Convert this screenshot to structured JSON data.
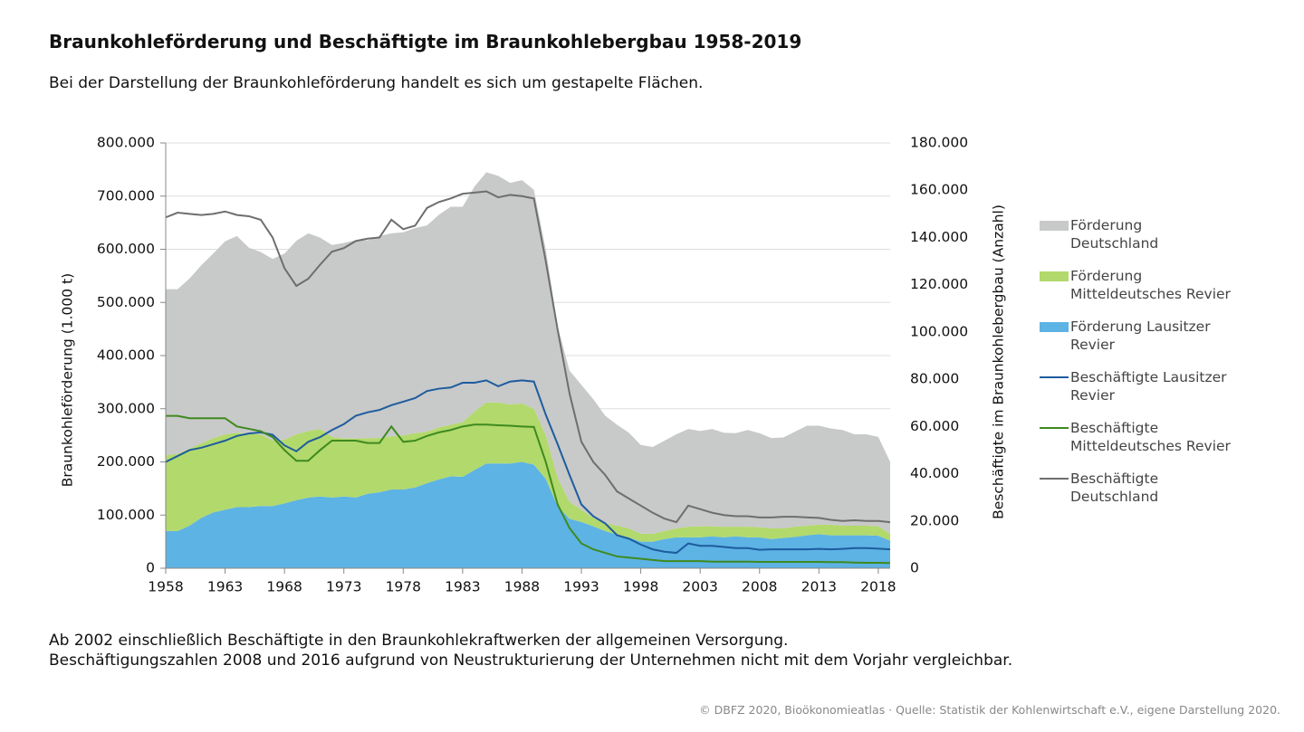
{
  "chart_data": {
    "type": "area",
    "title": "Braunkohleförderung und Beschäftigte im Braunkohlebergbau 1958-2019",
    "subtitle": "Bei der Darstellung der Braunkohleförderung handelt es sich um gestapelte Flächen.",
    "y_label": "Braunkohleförderung (1.000 t)",
    "y2_label": "Beschäftigte im Braunkohlebergbau (Anzahl)",
    "notes": [
      "Ab 2002 einschließlich Beschäftigte in den Braunkohlekraftwerken der allgemeinen Versorgung.",
      "Beschäftigungszahlen 2008 und 2016 aufgrund von Neustrukturierung der Unternehmen nicht mit dem Vorjahr vergleichbar."
    ],
    "source": "© DBFZ 2020, Bioökonomieatlas · Quelle: Statistik der Kohlenwirtschaft e.V., eigene Darstellung 2020.",
    "x": [
      1958,
      1959,
      1960,
      1961,
      1962,
      1963,
      1964,
      1965,
      1966,
      1967,
      1968,
      1969,
      1970,
      1971,
      1972,
      1973,
      1974,
      1975,
      1976,
      1977,
      1978,
      1979,
      1980,
      1981,
      1982,
      1983,
      1984,
      1985,
      1986,
      1987,
      1988,
      1989,
      1990,
      1991,
      1992,
      1993,
      1994,
      1995,
      1996,
      1997,
      1998,
      1999,
      2000,
      2001,
      2002,
      2003,
      2004,
      2005,
      2006,
      2007,
      2008,
      2009,
      2010,
      2011,
      2012,
      2013,
      2014,
      2015,
      2016,
      2017,
      2018,
      2019
    ],
    "xlim": [
      1958,
      2019
    ],
    "xticks": [
      1958,
      1963,
      1968,
      1973,
      1978,
      1983,
      1988,
      1993,
      1998,
      2003,
      2008,
      2013,
      2018
    ],
    "ylim": [
      0,
      800000
    ],
    "yticks": [
      0,
      {
        "value": 100000,
        "label": "100.000"
      },
      {
        "value": 200000,
        "label": "200.000"
      },
      {
        "value": 300000,
        "label": "300.000"
      },
      {
        "value": 400000,
        "label": "400.000"
      },
      {
        "value": 500000,
        "label": "500.000"
      },
      {
        "value": 600000,
        "label": "600.000"
      },
      {
        "value": 700000,
        "label": "700.000"
      },
      {
        "value": 800000,
        "label": "800.000"
      }
    ],
    "y2lim": [
      0,
      180000
    ],
    "y2ticks": [
      0,
      {
        "value": 20000,
        "label": "20.000"
      },
      {
        "value": 40000,
        "label": "40.000"
      },
      {
        "value": 60000,
        "label": "60.000"
      },
      {
        "value": 80000,
        "label": "80.000"
      },
      {
        "value": 100000,
        "label": "100.000"
      },
      {
        "value": 120000,
        "label": "120.000"
      },
      {
        "value": 140000,
        "label": "140.000"
      },
      {
        "value": 160000,
        "label": "160.000"
      },
      {
        "value": 180000,
        "label": "180.000"
      }
    ],
    "grid": true,
    "stacked": true,
    "series": [
      {
        "name": "Förderung Deutschland",
        "type": "area",
        "color": "#c8c9c9",
        "values": [
          312000,
          310000,
          320000,
          335000,
          347000,
          363000,
          370000,
          350000,
          343000,
          342000,
          350000,
          364000,
          372000,
          360000,
          361000,
          368000,
          373000,
          372000,
          380000,
          382000,
          382000,
          386000,
          388000,
          400000,
          410000,
          405000,
          423000,
          433000,
          426000,
          417000,
          420000,
          412000,
          350000,
          285000,
          247000,
          235000,
          223000,
          202000,
          190000,
          180000,
          167000,
          163000,
          170000,
          177000,
          184000,
          179000,
          183000,
          177000,
          176000,
          182000,
          177000,
          170000,
          171000,
          179000,
          188000,
          186000,
          181000,
          180000,
          172000,
          172000,
          168000,
          135000
        ]
      },
      {
        "name": "Förderung Mitteldeutsches Revier",
        "type": "area",
        "color": "#b2d96b",
        "values": [
          143000,
          145000,
          145000,
          140000,
          140000,
          142000,
          140000,
          138000,
          135000,
          123000,
          120000,
          124000,
          125000,
          127000,
          114000,
          109000,
          111000,
          105000,
          102000,
          100000,
          102000,
          102000,
          97000,
          98000,
          97000,
          103000,
          110000,
          115000,
          115000,
          111000,
          110000,
          105000,
          82000,
          53000,
          32000,
          23000,
          16000,
          15000,
          17000,
          17000,
          15000,
          15000,
          15000,
          17000,
          20000,
          21000,
          19000,
          20000,
          18000,
          20000,
          19000,
          20000,
          18000,
          19000,
          18000,
          18000,
          20000,
          18000,
          18000,
          18000,
          18000,
          13000
        ]
      },
      {
        "name": "Förderung Lausitzer Revier",
        "type": "area",
        "color": "#5db3e3",
        "values": [
          70000,
          70000,
          80000,
          95000,
          105000,
          110000,
          115000,
          115000,
          117000,
          117000,
          122000,
          128000,
          133000,
          135000,
          133000,
          135000,
          133000,
          140000,
          143000,
          148000,
          148000,
          152000,
          160000,
          167000,
          173000,
          172000,
          185000,
          197000,
          197000,
          197000,
          200000,
          195000,
          168000,
          117000,
          93000,
          87000,
          79000,
          70000,
          63000,
          58000,
          50000,
          50000,
          55000,
          58000,
          58000,
          58000,
          60000,
          58000,
          60000,
          58000,
          58000,
          55000,
          57000,
          59000,
          62000,
          64000,
          62000,
          62000,
          62000,
          62000,
          61000,
          52000
        ]
      },
      {
        "name": "Beschäftigte Lausitzer Revier",
        "type": "line",
        "axis": "y2",
        "color": "#1d5c9e",
        "values": [
          45000,
          47500,
          50000,
          51000,
          52500,
          54000,
          56000,
          57000,
          57500,
          56500,
          52000,
          49500,
          53500,
          55500,
          58500,
          61000,
          64500,
          66000,
          67000,
          69000,
          70500,
          72000,
          75000,
          76000,
          76500,
          78500,
          78500,
          79500,
          77000,
          79000,
          79500,
          79000,
          65000,
          52500,
          39500,
          27000,
          22000,
          19000,
          14000,
          12500,
          10000,
          8000,
          7000,
          6500,
          10500,
          9500,
          9500,
          9000,
          8500,
          8500,
          7800,
          8000,
          8000,
          8000,
          8000,
          8200,
          8000,
          8200,
          8500,
          8500,
          8300,
          8000
        ]
      },
      {
        "name": "Beschäftigte Mitteldeutsches Revier",
        "type": "line",
        "axis": "y2",
        "color": "#3e8a1f",
        "values": [
          64500,
          64500,
          63500,
          63500,
          63500,
          63500,
          60000,
          59000,
          58000,
          55500,
          50000,
          45500,
          45500,
          50000,
          54000,
          54000,
          54000,
          53000,
          53000,
          60000,
          53500,
          54000,
          56000,
          57500,
          58500,
          60000,
          60800,
          60800,
          60500,
          60300,
          60000,
          59800,
          45000,
          27000,
          17000,
          10500,
          8000,
          6500,
          5000,
          4500,
          4000,
          3500,
          3000,
          3000,
          3000,
          3000,
          2800,
          2800,
          2800,
          2800,
          2700,
          2700,
          2700,
          2700,
          2700,
          2700,
          2600,
          2600,
          2400,
          2300,
          2300,
          2200
        ]
      },
      {
        "name": "Beschäftigte Deutschland",
        "type": "line",
        "axis": "y2",
        "color": "#6e6e6e",
        "values": [
          148500,
          150500,
          150000,
          149500,
          150000,
          151000,
          149500,
          149000,
          147500,
          140000,
          127000,
          119500,
          122500,
          128500,
          134000,
          135500,
          138500,
          139500,
          140000,
          147500,
          143500,
          145000,
          152500,
          155000,
          156500,
          158500,
          159000,
          159500,
          157000,
          158000,
          157500,
          156500,
          130000,
          101000,
          74000,
          53500,
          45000,
          39500,
          32500,
          29500,
          26500,
          23500,
          21000,
          19500,
          26500,
          25000,
          23500,
          22500,
          22000,
          22000,
          21500,
          21500,
          21800,
          21800,
          21500,
          21300,
          20500,
          20000,
          20300,
          20000,
          20000,
          19500
        ]
      }
    ]
  }
}
